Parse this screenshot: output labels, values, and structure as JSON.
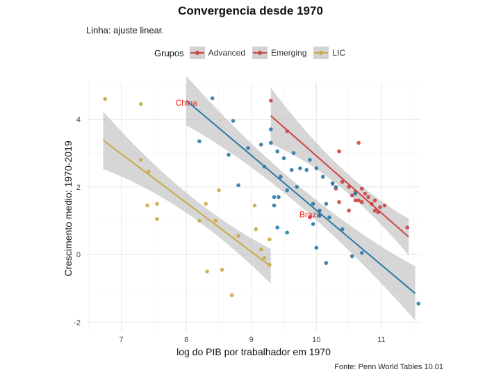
{
  "colors": {
    "Advanced": "#cc4444",
    "Emerging": "#2a7aa8",
    "LIC": "#c8aa48",
    "band": "#bdbdbd",
    "label": "#e8241c"
  },
  "chart_data": {
    "type": "scatter",
    "title": "Convergencia desde 1970",
    "subtitle": "Linha: ajuste linear.",
    "xlabel": "log do PIB por trabalhador em 1970",
    "ylabel": "Crescimento medio: 1970-2019",
    "caption": "Fonte: Penn World Tables 10.01",
    "xlim": [
      6.47,
      11.6
    ],
    "ylim": [
      -2.3,
      5.1
    ],
    "xticks": [
      "7",
      "8",
      "9",
      "10",
      "11"
    ],
    "yticks": [
      "-2",
      "0",
      "2",
      "4"
    ],
    "grid": true,
    "legend": {
      "title": "Grupos",
      "position": "top",
      "entries": [
        "Advanced",
        "Emerging",
        "LIC"
      ]
    },
    "series": [
      {
        "name": "Advanced",
        "points": [
          [
            9.3,
            4.55
          ],
          [
            9.55,
            3.65
          ],
          [
            10.35,
            3.05
          ],
          [
            10.65,
            3.3
          ],
          [
            10.25,
            2.1
          ],
          [
            10.4,
            2.15
          ],
          [
            10.5,
            2.0
          ],
          [
            10.55,
            1.75
          ],
          [
            10.6,
            1.85
          ],
          [
            10.65,
            1.6
          ],
          [
            10.7,
            1.95
          ],
          [
            10.75,
            1.8
          ],
          [
            10.8,
            1.7
          ],
          [
            10.85,
            1.5
          ],
          [
            10.9,
            1.6
          ],
          [
            10.95,
            1.25
          ],
          [
            10.98,
            1.4
          ],
          [
            11.05,
            1.45
          ],
          [
            10.7,
            1.55
          ],
          [
            10.6,
            1.6
          ],
          [
            10.35,
            1.55
          ],
          [
            10.5,
            1.3
          ],
          [
            10.3,
            1.95
          ],
          [
            11.4,
            0.8
          ],
          [
            10.9,
            1.3
          ],
          [
            9.9,
            1.1
          ]
        ],
        "fit": {
          "x0": 9.3,
          "x1": 11.42,
          "y0": 4.1,
          "y1": 0.52
        }
      },
      {
        "name": "Emerging",
        "points": [
          [
            8.4,
            4.62
          ],
          [
            8.72,
            3.95
          ],
          [
            8.2,
            3.35
          ],
          [
            8.65,
            2.95
          ],
          [
            8.8,
            2.05
          ],
          [
            8.95,
            3.15
          ],
          [
            9.15,
            3.25
          ],
          [
            9.2,
            2.6
          ],
          [
            9.3,
            3.7
          ],
          [
            9.3,
            3.3
          ],
          [
            9.4,
            3.05
          ],
          [
            9.45,
            2.3
          ],
          [
            9.5,
            2.85
          ],
          [
            9.55,
            1.9
          ],
          [
            9.62,
            2.5
          ],
          [
            9.65,
            3.0
          ],
          [
            9.7,
            2.0
          ],
          [
            9.75,
            2.55
          ],
          [
            9.85,
            2.5
          ],
          [
            9.9,
            2.8
          ],
          [
            9.95,
            1.5
          ],
          [
            10.0,
            2.55
          ],
          [
            10.05,
            1.3
          ],
          [
            10.15,
            1.5
          ],
          [
            10.25,
            2.1
          ],
          [
            10.1,
            2.3
          ],
          [
            10.3,
            2.0
          ],
          [
            9.35,
            1.7
          ],
          [
            9.35,
            1.45
          ],
          [
            9.42,
            1.7
          ],
          [
            9.4,
            0.8
          ],
          [
            9.55,
            0.65
          ],
          [
            9.95,
            0.9
          ],
          [
            10.0,
            0.2
          ],
          [
            10.15,
            -0.25
          ],
          [
            10.4,
            0.75
          ],
          [
            10.55,
            -0.05
          ],
          [
            10.7,
            0.05
          ],
          [
            11.57,
            -1.45
          ],
          [
            10.6,
            1.8
          ],
          [
            10.2,
            1.1
          ],
          [
            10.05,
            1.15
          ]
        ],
        "fit": {
          "x0": 8.0,
          "x1": 11.52,
          "y0": 4.55,
          "y1": -1.15
        }
      },
      {
        "name": "LIC",
        "points": [
          [
            6.75,
            4.6
          ],
          [
            7.3,
            4.45
          ],
          [
            7.3,
            2.8
          ],
          [
            7.42,
            2.45
          ],
          [
            7.4,
            1.45
          ],
          [
            7.55,
            1.5
          ],
          [
            7.55,
            1.05
          ],
          [
            8.2,
            1.0
          ],
          [
            8.3,
            1.5
          ],
          [
            8.45,
            1.0
          ],
          [
            8.5,
            1.9
          ],
          [
            8.7,
            -1.2
          ],
          [
            8.55,
            -0.45
          ],
          [
            8.32,
            -0.5
          ],
          [
            8.8,
            0.55
          ],
          [
            9.05,
            1.45
          ],
          [
            9.15,
            0.15
          ],
          [
            9.2,
            -0.1
          ],
          [
            9.28,
            0.45
          ],
          [
            9.28,
            -0.3
          ],
          [
            9.07,
            0.75
          ]
        ],
        "fit": {
          "x0": 6.72,
          "x1": 9.3,
          "y0": 3.38,
          "y1": -0.35
        }
      }
    ],
    "annotations": [
      {
        "text": "China",
        "x": 8.0,
        "y": 4.4
      },
      {
        "text": "Brazil",
        "x": 9.9,
        "y": 1.1
      }
    ]
  }
}
